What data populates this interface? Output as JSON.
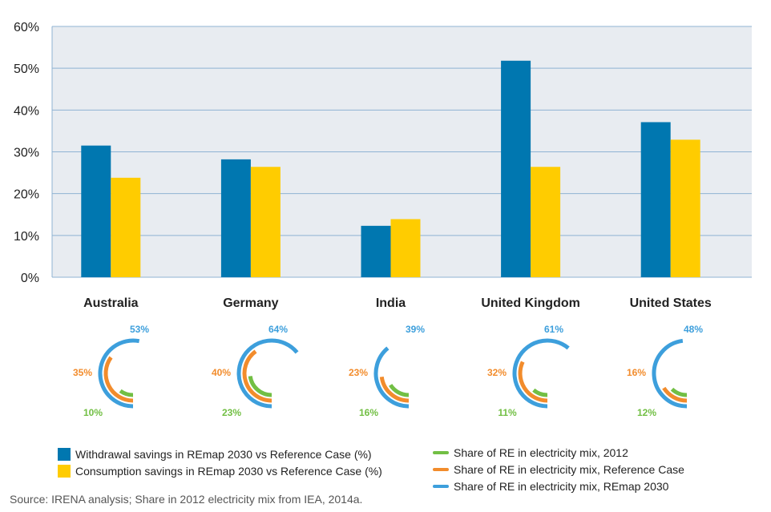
{
  "colors": {
    "withdrawal": "#0077B0",
    "consumption": "#FFCC00",
    "re2012": "#72BF44",
    "reference": "#F28C2C",
    "remap": "#3D9FDC",
    "plot_bg": "#E8ECF1",
    "grid": "#8FB3D3"
  },
  "chart_data": {
    "type": "bar",
    "categories": [
      "Australia",
      "Germany",
      "India",
      "United Kingdom",
      "United States"
    ],
    "series": [
      {
        "name": "Withdrawal savings in REmap 2030 vs Reference Case (%)",
        "values": [
          31.5,
          28.2,
          12.3,
          51.8,
          37.1
        ]
      },
      {
        "name": "Consumption savings in REmap 2030 vs Reference Case (%)",
        "values": [
          23.8,
          26.4,
          13.9,
          26.4,
          32.9
        ]
      }
    ],
    "ylim": [
      0,
      60
    ],
    "yticks": [
      "0%",
      "10%",
      "20%",
      "30%",
      "40%",
      "50%",
      "60%"
    ],
    "xlabel": "",
    "ylabel": "",
    "re_share": [
      {
        "country": "Australia",
        "share_2012": 10,
        "share_reference": 35,
        "share_remap": 53,
        "label_2012": "10%",
        "label_reference": "35%",
        "label_remap": "53%"
      },
      {
        "country": "Germany",
        "share_2012": 23,
        "share_reference": 40,
        "share_remap": 64,
        "label_2012": "23%",
        "label_reference": "40%",
        "label_remap": "64%"
      },
      {
        "country": "India",
        "share_2012": 16,
        "share_reference": 23,
        "share_remap": 39,
        "label_2012": "16%",
        "label_reference": "23%",
        "label_remap": "39%"
      },
      {
        "country": "United Kingdom",
        "share_2012": 11,
        "share_reference": 32,
        "share_remap": 61,
        "label_2012": "11%",
        "label_reference": "32%",
        "label_remap": "61%"
      },
      {
        "country": "United States",
        "share_2012": 12,
        "share_reference": 16,
        "share_remap": 48,
        "label_2012": "12%",
        "label_reference": "16%",
        "label_remap": "48%"
      }
    ],
    "re_share_legend": [
      "Share of RE in electricity mix, 2012",
      "Share of RE in electricity mix, Reference Case",
      "Share of RE in electricity mix, REmap 2030"
    ]
  },
  "source": "Source: IRENA analysis; Share in 2012 electricity mix from IEA, 2014a."
}
